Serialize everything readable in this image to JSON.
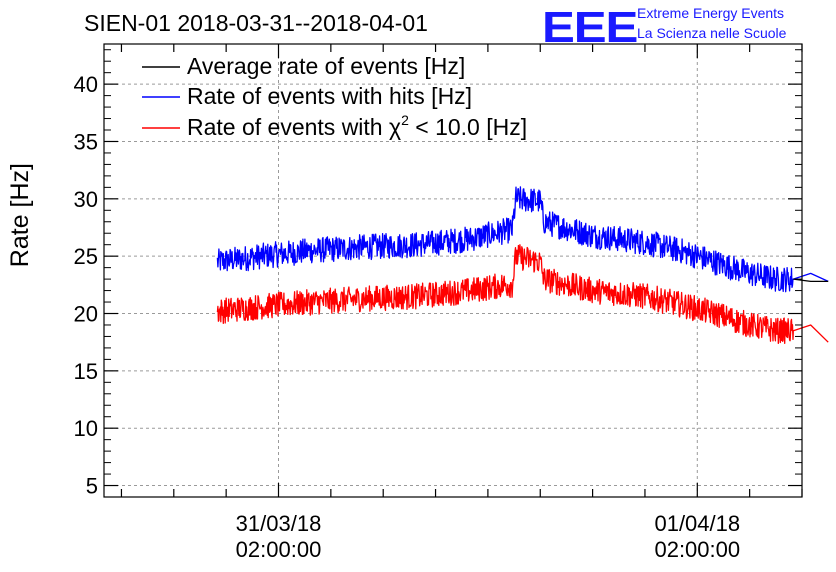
{
  "header": {
    "title": "SIEN-01 2018-03-31--2018-04-01",
    "logo_mark": "EEE",
    "logo_line1": "Extreme Energy Events",
    "logo_line2": "La Scienza nelle Scuole"
  },
  "colors": {
    "average": "#000000",
    "hits": "#0000ff",
    "chi2": "#ff0000",
    "grid": "#9a9a9a",
    "logo": "#1a1aff"
  },
  "chart_data": {
    "type": "line",
    "title": "SIEN-01 2018-03-31--2018-04-01",
    "xlabel": "",
    "ylabel": "Rate [Hz]",
    "ylim": [
      4,
      43.5
    ],
    "xlim_hours": [
      -10,
      30
    ],
    "yticks": [
      5,
      10,
      15,
      20,
      25,
      30,
      35,
      40
    ],
    "xticks": [
      {
        "hour": 0,
        "date": "31/03/18",
        "time": "02:00:00"
      },
      {
        "hour": 24,
        "date": "01/04/18",
        "time": "02:00:00"
      }
    ],
    "grid": true,
    "legend_position": "top-left",
    "legend": [
      {
        "key": "average",
        "label": "Average rate of events [Hz]"
      },
      {
        "key": "hits",
        "label": "Rate of events with hits [Hz]"
      },
      {
        "key": "chi2",
        "label_prefix": "Rate of events with ",
        "label_symbol": "χ",
        "label_sup": "2",
        "label_suffix": " < 10.0 [Hz]"
      }
    ],
    "series": [
      {
        "name": "Rate of events with hits [Hz]",
        "key": "hits",
        "x_hours": [
          -3.5,
          -1,
          2,
          5,
          8,
          11,
          13,
          13.4,
          13.6,
          15,
          15.2,
          18,
          21,
          23,
          25,
          27,
          28.5,
          29.5,
          30.5,
          31.5
        ],
        "y": [
          24.5,
          25.0,
          25.5,
          25.8,
          26.0,
          26.5,
          27.2,
          27.3,
          30.0,
          29.8,
          28.0,
          26.8,
          26.2,
          25.5,
          24.5,
          23.5,
          23.0,
          23.0,
          23.5,
          22.8
        ],
        "noise": 1.4
      },
      {
        "name": "Rate of events with χ2 < 10.0 [Hz]",
        "key": "chi2",
        "x_hours": [
          -3.5,
          -1,
          2,
          5,
          8,
          11,
          13,
          13.4,
          13.6,
          15,
          15.2,
          18,
          21,
          23,
          25,
          27,
          28.5,
          29.5,
          30.5,
          31.5
        ],
        "y": [
          20.2,
          20.6,
          21.0,
          21.3,
          21.5,
          22.0,
          22.5,
          22.5,
          25.0,
          24.5,
          23.0,
          22.0,
          21.5,
          20.8,
          20.0,
          19.0,
          18.5,
          18.5,
          19.0,
          17.5
        ],
        "noise": 1.4
      },
      {
        "name": "Average rate of events [Hz]",
        "key": "average",
        "x_hours": [
          29.5,
          30.5,
          31.5
        ],
        "y": [
          23.0,
          22.8,
          22.8
        ],
        "noise": 0
      }
    ]
  }
}
